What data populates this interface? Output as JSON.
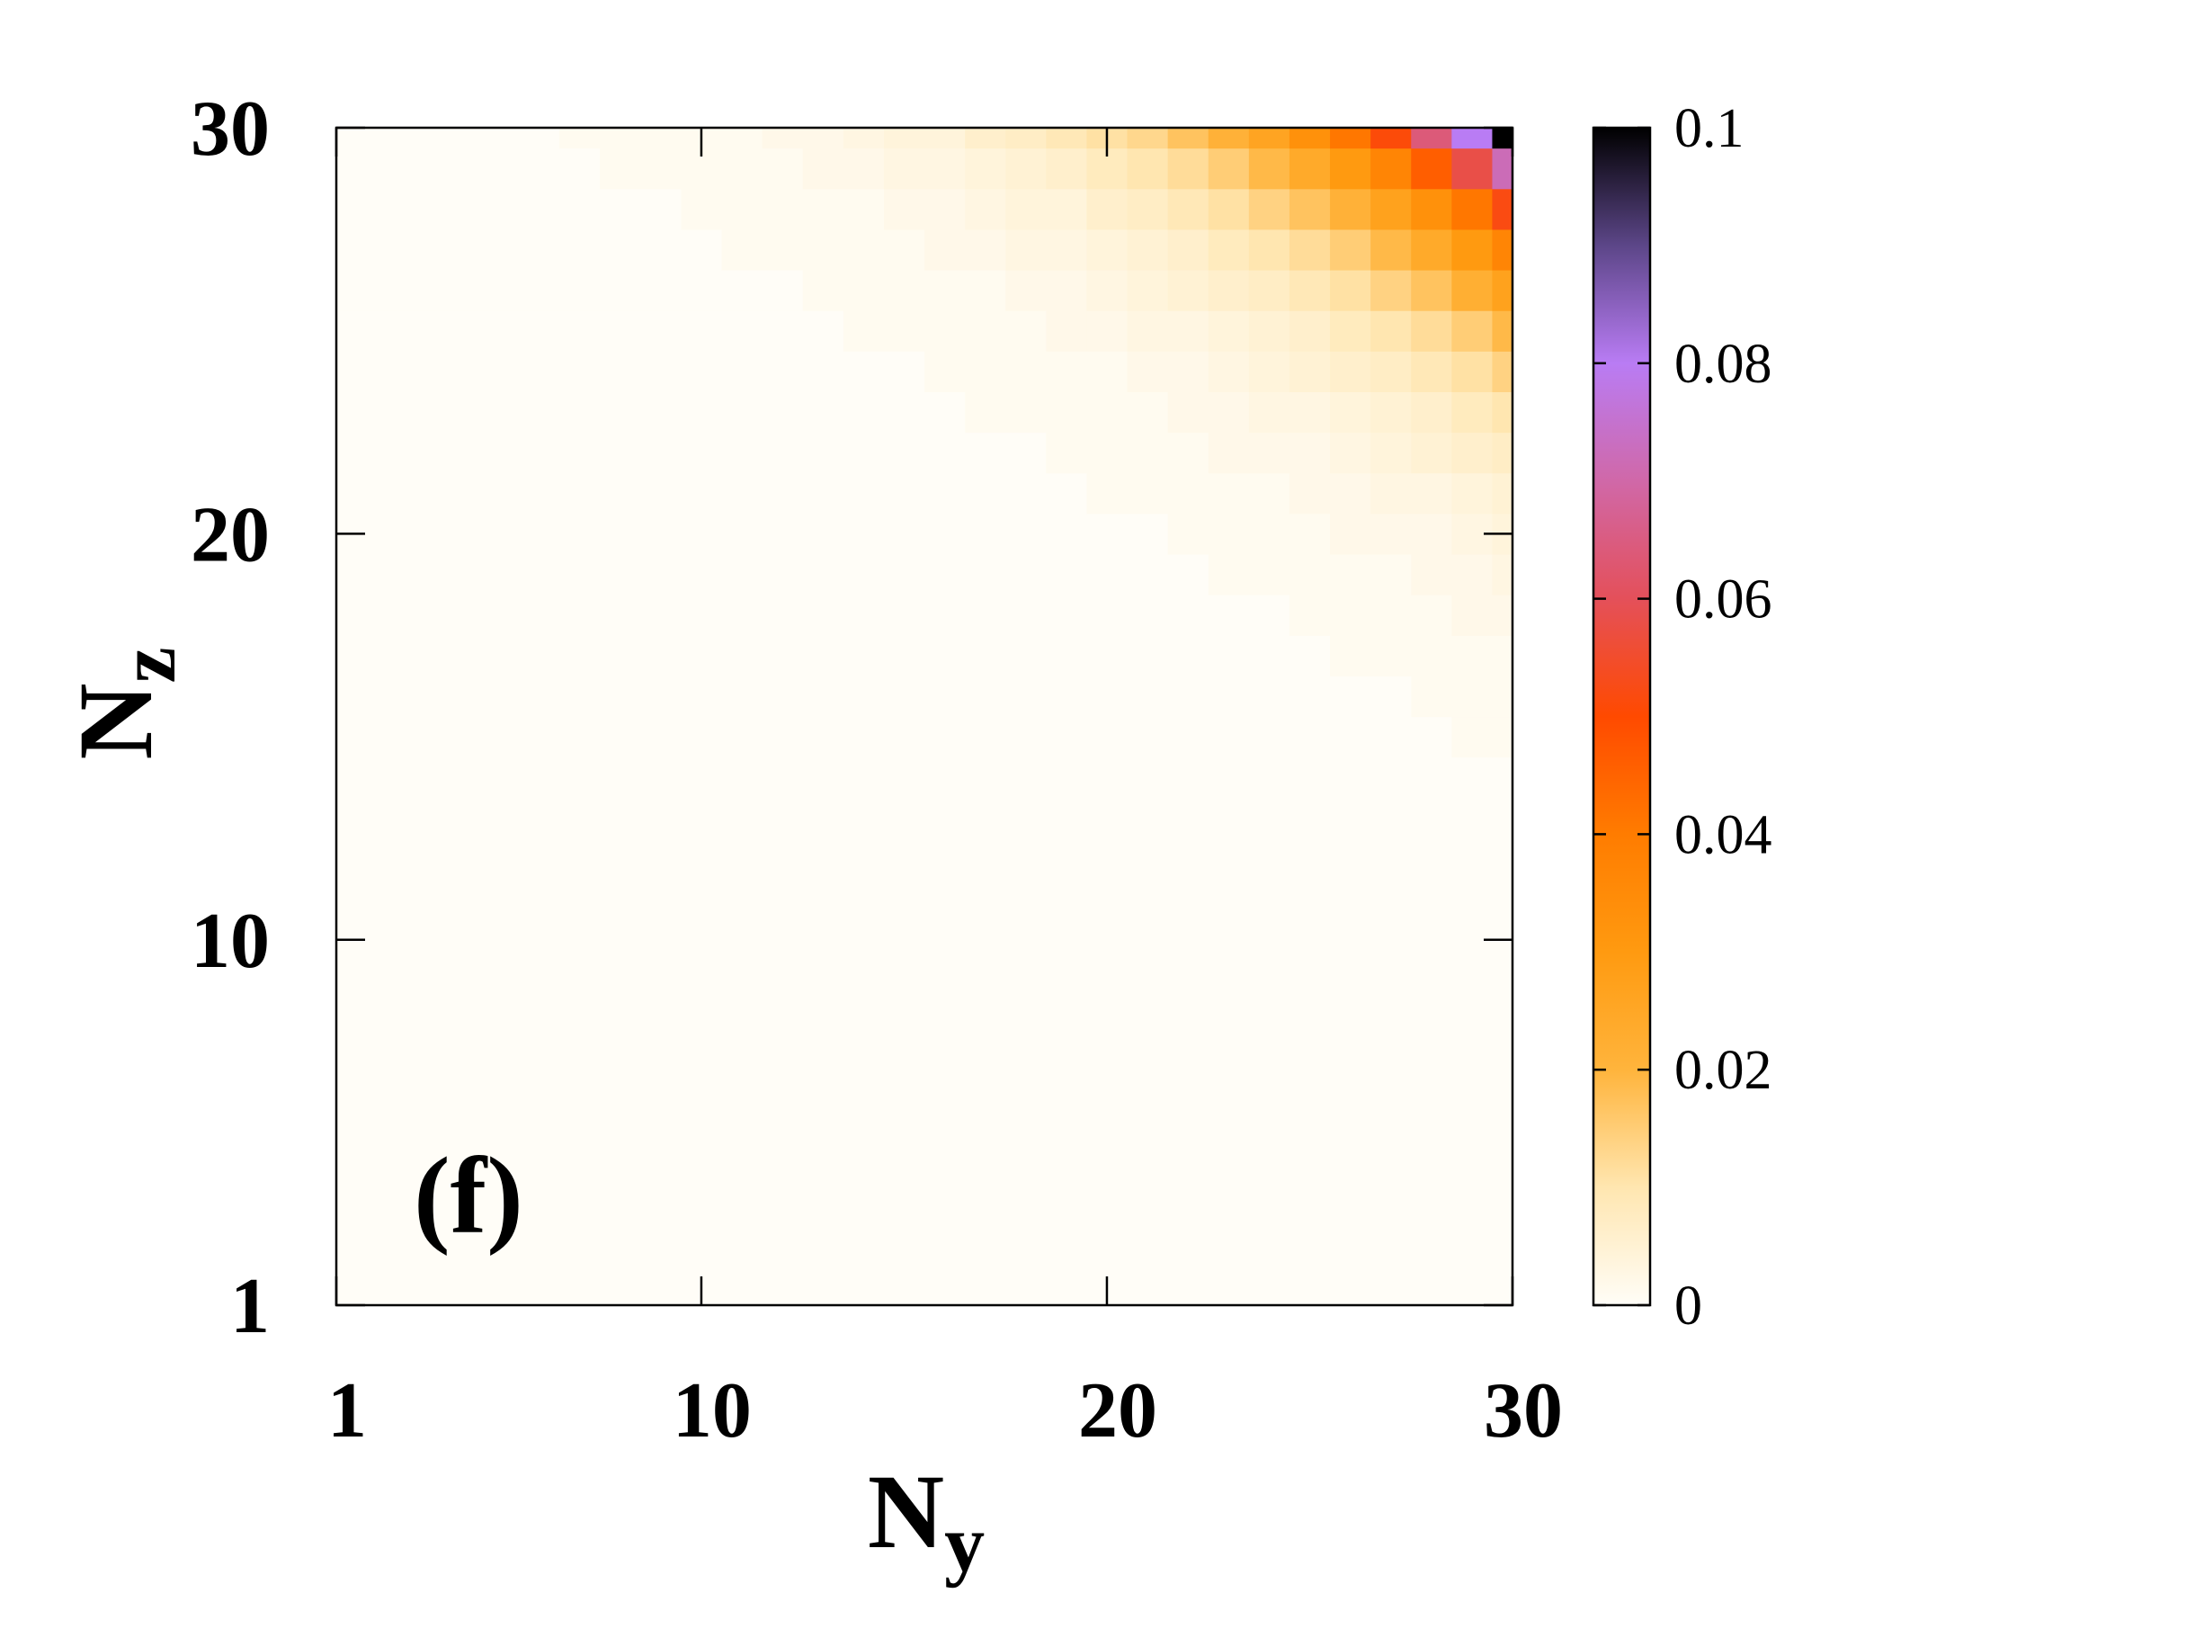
{
  "chart_data": {
    "type": "heatmap",
    "x": [
      1,
      2,
      3,
      4,
      5,
      6,
      7,
      8,
      9,
      10,
      11,
      12,
      13,
      14,
      15,
      16,
      17,
      18,
      19,
      20,
      21,
      22,
      23,
      24,
      25,
      26,
      27,
      28,
      29,
      30
    ],
    "y": [
      1,
      2,
      3,
      4,
      5,
      6,
      7,
      8,
      9,
      10,
      11,
      12,
      13,
      14,
      15,
      16,
      17,
      18,
      19,
      20,
      21,
      22,
      23,
      24,
      25,
      26,
      27,
      28,
      29,
      30
    ],
    "values": [
      [
        0,
        0,
        0,
        0,
        0,
        0,
        0,
        0,
        0,
        0,
        0,
        0,
        0,
        0,
        0,
        0,
        0,
        0,
        0,
        0,
        0,
        0,
        0,
        0,
        0,
        0,
        0,
        0,
        0,
        0
      ],
      [
        0,
        0,
        0,
        0,
        0,
        0,
        0,
        0,
        0,
        0,
        0,
        0,
        0,
        0,
        0,
        0,
        0,
        0,
        0,
        0,
        0,
        0,
        0,
        0,
        0,
        0,
        0,
        0,
        0,
        0
      ],
      [
        0,
        0,
        0,
        0,
        0,
        0,
        0,
        0,
        0,
        0,
        0,
        0,
        0,
        0,
        0,
        0,
        0,
        0,
        0,
        0,
        0,
        0,
        0,
        0,
        0,
        0,
        0,
        0,
        0,
        0
      ],
      [
        0,
        0,
        0,
        0,
        0,
        0,
        0,
        0,
        0,
        0,
        0,
        0,
        0,
        0,
        0,
        0,
        0,
        0,
        0,
        0,
        0,
        0,
        0,
        0,
        0,
        0,
        0,
        0,
        0,
        0
      ],
      [
        0,
        0,
        0,
        0,
        0,
        0,
        0,
        0,
        0,
        0,
        0,
        0,
        0,
        0,
        0,
        0,
        0,
        0,
        0,
        0,
        0,
        0,
        0,
        0,
        0,
        0,
        0,
        0,
        0,
        0
      ],
      [
        0,
        0,
        0,
        0,
        0,
        0,
        0,
        0,
        0,
        0,
        0,
        0,
        0,
        0,
        0,
        0,
        0,
        0,
        0,
        0,
        0,
        0,
        0,
        0,
        0,
        0,
        0,
        0,
        0,
        0
      ],
      [
        0,
        0,
        0,
        0,
        0,
        0,
        0,
        0,
        0,
        0,
        0,
        0,
        0,
        0,
        0,
        0,
        0,
        0,
        0,
        0,
        0,
        0,
        0,
        0,
        0,
        0,
        0,
        0,
        0,
        0
      ],
      [
        0,
        0,
        0,
        0,
        0,
        0,
        0,
        0,
        0,
        0,
        0,
        0,
        0,
        0,
        0,
        0,
        0,
        0,
        0,
        0,
        0,
        0,
        0,
        0,
        0,
        0,
        0,
        0,
        0,
        0
      ],
      [
        0,
        0,
        0,
        0,
        0,
        0,
        0,
        0,
        0,
        0,
        0,
        0,
        0,
        0,
        0,
        0,
        0,
        0,
        0,
        0,
        0,
        0,
        0,
        0,
        0,
        0,
        0,
        0,
        0,
        0
      ],
      [
        0,
        0,
        0,
        0,
        0,
        0,
        0,
        0,
        0,
        0,
        0,
        0,
        0,
        0,
        0,
        0,
        0,
        0,
        0,
        0,
        0,
        0,
        0,
        0,
        0,
        0,
        0,
        0,
        0,
        0
      ],
      [
        0,
        0,
        0,
        0,
        0,
        0,
        0,
        0,
        0,
        0,
        0,
        0,
        0,
        0,
        0,
        0,
        0,
        0,
        0,
        0,
        0,
        0,
        0,
        0,
        0,
        0,
        0,
        0,
        0,
        0
      ],
      [
        0,
        0,
        0,
        0,
        0,
        0,
        0,
        0,
        0,
        0,
        0,
        0,
        0,
        0,
        0,
        0,
        0,
        0,
        0,
        0,
        0,
        0,
        0,
        0,
        0,
        0,
        0,
        0,
        0,
        0
      ],
      [
        0,
        0,
        0,
        0,
        0,
        0,
        0,
        0,
        0,
        0,
        0,
        0,
        0,
        0,
        0,
        0,
        0,
        0,
        0,
        0,
        0,
        0,
        0,
        0,
        0,
        0,
        0,
        0,
        0,
        0
      ],
      [
        0,
        0,
        0,
        0,
        0,
        0,
        0,
        0,
        0,
        0,
        0,
        0,
        0,
        0,
        0,
        0,
        0,
        0,
        0,
        0,
        0,
        0,
        0,
        0,
        0,
        0,
        0,
        0,
        0,
        0
      ],
      [
        0,
        0,
        0,
        0,
        0,
        0,
        0,
        0,
        0,
        0,
        0,
        0,
        0,
        0,
        0,
        0,
        0,
        0,
        0,
        0,
        0,
        0,
        0,
        0,
        0,
        0,
        0,
        0,
        0.001,
        0.001
      ],
      [
        0,
        0,
        0,
        0,
        0,
        0,
        0,
        0,
        0,
        0,
        0,
        0,
        0,
        0,
        0,
        0,
        0,
        0,
        0,
        0,
        0,
        0,
        0,
        0,
        0,
        0,
        0,
        0.001,
        0.001,
        0.001
      ],
      [
        0,
        0,
        0,
        0,
        0,
        0,
        0,
        0,
        0,
        0,
        0,
        0,
        0,
        0,
        0,
        0,
        0,
        0,
        0,
        0,
        0,
        0,
        0,
        0,
        0,
        0.001,
        0.001,
        0.001,
        0.001,
        0.001
      ],
      [
        0,
        0,
        0,
        0,
        0,
        0,
        0,
        0,
        0,
        0,
        0,
        0,
        0,
        0,
        0,
        0,
        0,
        0,
        0,
        0,
        0,
        0,
        0,
        0,
        0.001,
        0.001,
        0.001,
        0.001,
        0.002,
        0.002
      ],
      [
        0,
        0,
        0,
        0,
        0,
        0,
        0,
        0,
        0,
        0,
        0,
        0,
        0,
        0,
        0,
        0,
        0,
        0,
        0,
        0,
        0,
        0,
        0.001,
        0.001,
        0.001,
        0.001,
        0.001,
        0.002,
        0.002,
        0.003
      ],
      [
        0,
        0,
        0,
        0,
        0,
        0,
        0,
        0,
        0,
        0,
        0,
        0,
        0,
        0,
        0,
        0,
        0,
        0,
        0,
        0,
        0,
        0.001,
        0.001,
        0.001,
        0.001,
        0.002,
        0.002,
        0.002,
        0.003,
        0.004
      ],
      [
        0,
        0,
        0,
        0,
        0,
        0,
        0,
        0,
        0,
        0,
        0,
        0,
        0,
        0,
        0,
        0,
        0,
        0,
        0,
        0.001,
        0.001,
        0.001,
        0.001,
        0.001,
        0.002,
        0.002,
        0.003,
        0.003,
        0.004,
        0.005
      ],
      [
        0,
        0,
        0,
        0,
        0,
        0,
        0,
        0,
        0,
        0,
        0,
        0,
        0,
        0,
        0,
        0,
        0,
        0,
        0.001,
        0.001,
        0.001,
        0.001,
        0.002,
        0.002,
        0.002,
        0.003,
        0.004,
        0.005,
        0.006,
        0.007
      ],
      [
        0,
        0,
        0,
        0,
        0,
        0,
        0,
        0,
        0,
        0,
        0,
        0,
        0,
        0,
        0,
        0,
        0.001,
        0.001,
        0.001,
        0.001,
        0.001,
        0.002,
        0.002,
        0.003,
        0.003,
        0.004,
        0.005,
        0.006,
        0.008,
        0.01
      ],
      [
        0,
        0,
        0,
        0,
        0,
        0,
        0,
        0,
        0,
        0,
        0,
        0,
        0,
        0,
        0,
        0.001,
        0.001,
        0.001,
        0.001,
        0.001,
        0.002,
        0.002,
        0.003,
        0.004,
        0.005,
        0.006,
        0.007,
        0.009,
        0.011,
        0.014
      ],
      [
        0,
        0,
        0,
        0,
        0,
        0,
        0,
        0,
        0,
        0,
        0,
        0,
        0,
        0.001,
        0.001,
        0.001,
        0.001,
        0.001,
        0.002,
        0.002,
        0.003,
        0.003,
        0.004,
        0.005,
        0.006,
        0.008,
        0.01,
        0.012,
        0.015,
        0.019
      ],
      [
        0,
        0,
        0,
        0,
        0,
        0,
        0,
        0,
        0,
        0,
        0,
        0,
        0.001,
        0.001,
        0.001,
        0.001,
        0.001,
        0.002,
        0.002,
        0.003,
        0.004,
        0.005,
        0.006,
        0.007,
        0.009,
        0.011,
        0.014,
        0.017,
        0.022,
        0.027
      ],
      [
        0,
        0,
        0,
        0,
        0,
        0,
        0,
        0,
        0,
        0,
        0.001,
        0.001,
        0.001,
        0.001,
        0.001,
        0.002,
        0.002,
        0.003,
        0.003,
        0.004,
        0.005,
        0.006,
        0.008,
        0.01,
        0.012,
        0.015,
        0.019,
        0.024,
        0.03,
        0.037
      ],
      [
        0,
        0,
        0,
        0,
        0,
        0,
        0,
        0,
        0,
        0.001,
        0.001,
        0.001,
        0.001,
        0.001,
        0.002,
        0.002,
        0.003,
        0.004,
        0.004,
        0.006,
        0.007,
        0.009,
        0.011,
        0.014,
        0.017,
        0.021,
        0.027,
        0.033,
        0.041,
        0.052
      ],
      [
        0,
        0,
        0,
        0,
        0,
        0,
        0,
        0.001,
        0.001,
        0.001,
        0.001,
        0.001,
        0.002,
        0.002,
        0.003,
        0.003,
        0.004,
        0.005,
        0.006,
        0.008,
        0.01,
        0.012,
        0.015,
        0.019,
        0.024,
        0.03,
        0.037,
        0.046,
        0.058,
        0.072
      ],
      [
        0,
        0,
        0,
        0,
        0,
        0,
        0.001,
        0.001,
        0.001,
        0.001,
        0.001,
        0.002,
        0.002,
        0.003,
        0.004,
        0.004,
        0.006,
        0.007,
        0.009,
        0.011,
        0.013,
        0.017,
        0.021,
        0.026,
        0.033,
        0.041,
        0.051,
        0.064,
        0.08,
        0.1
      ]
    ],
    "xlim": [
      1,
      30
    ],
    "ylim": [
      1,
      30
    ],
    "xticks": [
      1,
      10,
      20,
      30
    ],
    "yticks": [
      1,
      10,
      20,
      30
    ],
    "xlabel": {
      "text": "N",
      "subscript": "y"
    },
    "ylabel": {
      "text": "N",
      "subscript": "z"
    },
    "annotation": "(f)",
    "colorbar": {
      "lim": [
        0,
        0.1
      ],
      "ticks": [
        0,
        0.02,
        0.04,
        0.06,
        0.08,
        0.1
      ],
      "colorscale": [
        [
          0,
          "#fffdf7"
        ],
        [
          0.1,
          "#ffe6b0"
        ],
        [
          0.2,
          "#ffb43c"
        ],
        [
          0.3,
          "#ff9a10"
        ],
        [
          0.4,
          "#ff7c00"
        ],
        [
          0.5,
          "#ff4a00"
        ],
        [
          0.6,
          "#e4505a"
        ],
        [
          0.7,
          "#d068a8"
        ],
        [
          0.8,
          "#b97cf4"
        ],
        [
          0.9,
          "#5c4688"
        ],
        [
          1,
          "#000000"
        ]
      ]
    }
  }
}
